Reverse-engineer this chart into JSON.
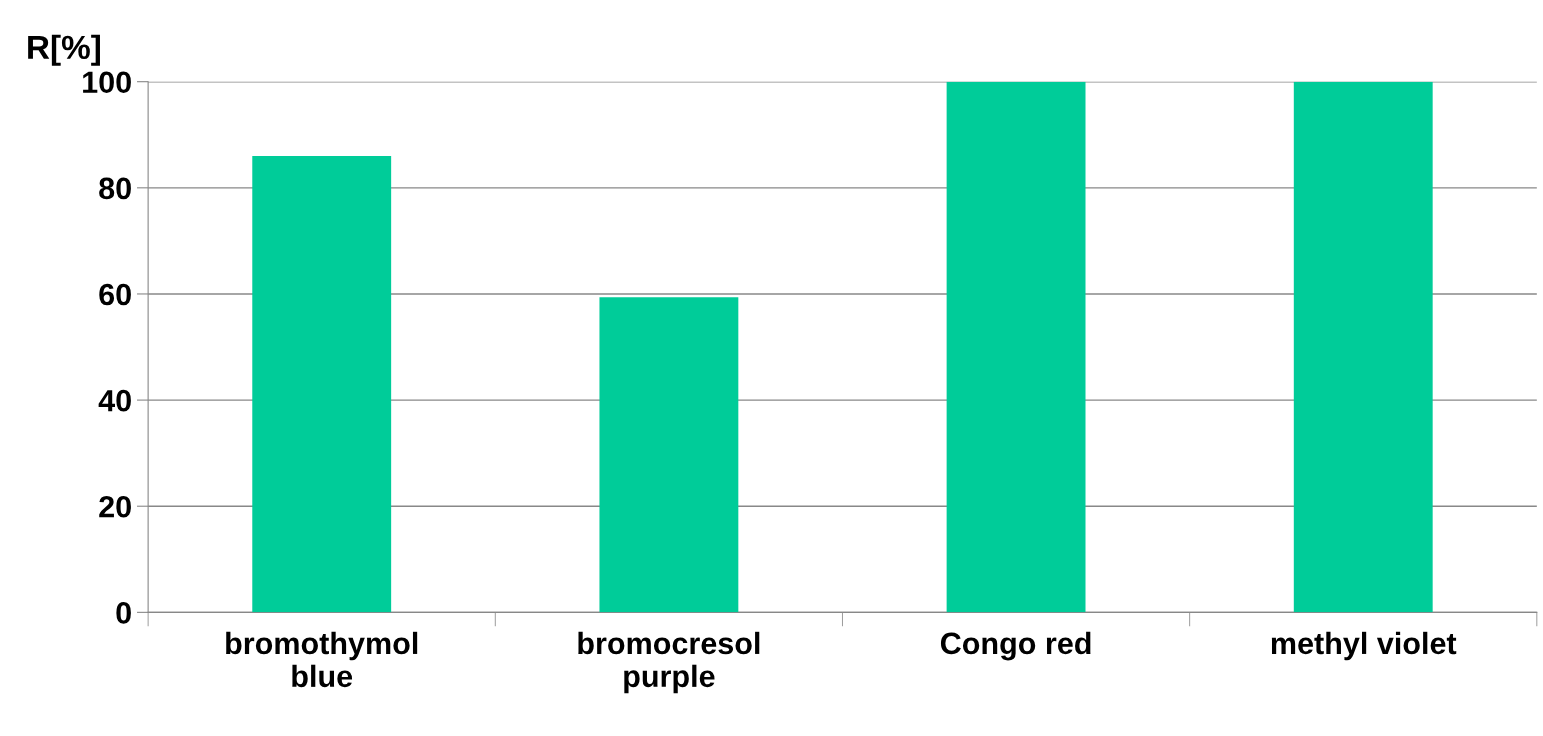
{
  "chart_data": {
    "type": "bar",
    "ylabel": "R[%]",
    "categories": [
      "bromothymol\nblue",
      "bromocresol\npurple",
      "Congo red",
      "methyl violet"
    ],
    "values": [
      86,
      59.4,
      100,
      100
    ],
    "color": "#00cc99",
    "ylim": [
      0,
      100
    ],
    "yticks": [
      0,
      20,
      40,
      60,
      80,
      100
    ],
    "grid": "y"
  }
}
